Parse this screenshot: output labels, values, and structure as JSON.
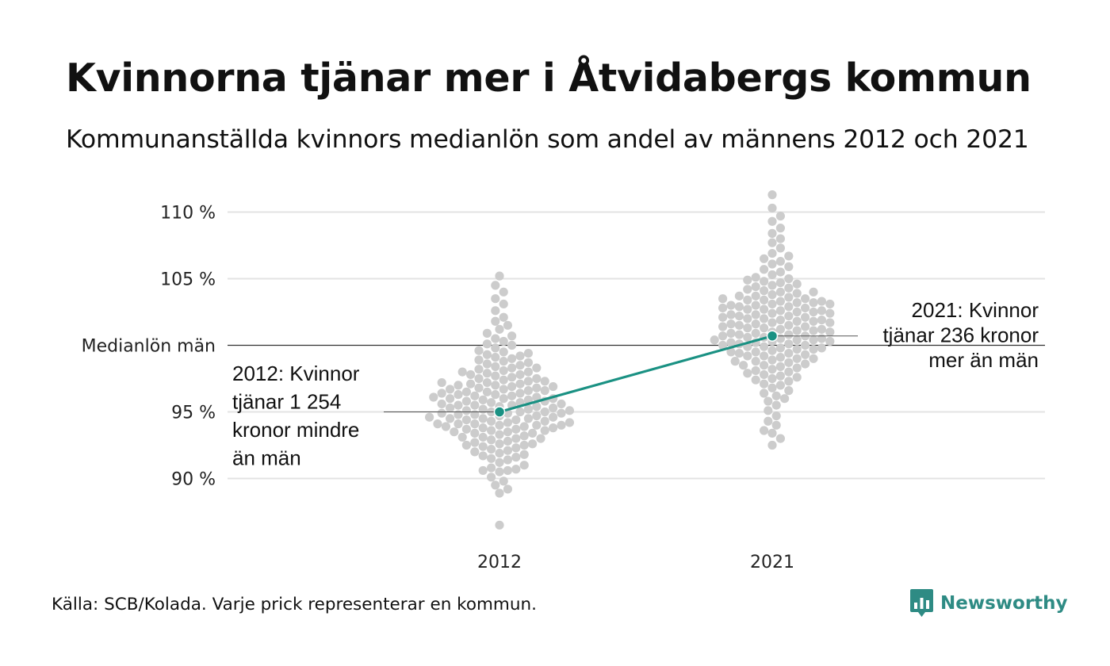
{
  "title": "Kvinnorna tjänar mer i Åtvidabergs kommun",
  "subtitle": "Kommunanställda kvinnors medianlön som andel av männens 2012 och 2021",
  "source": "Källa: SCB/Kolada. Varje prick representerar en kommun.",
  "brand": {
    "name": "Newsworthy",
    "icon": "newsworthy-logo-icon",
    "color": "#2e8b84"
  },
  "chart_data": {
    "type": "scatter",
    "subtype": "beeswarm",
    "title": "Kvinnorna tjänar mer i Åtvidabergs kommun",
    "subtitle": "Kommunanställda kvinnors medianlön som andel av männens 2012 och 2021",
    "categories": [
      "2012",
      "2021"
    ],
    "y_ticks": [
      {
        "value": 90,
        "label": "90 %"
      },
      {
        "value": 95,
        "label": "95 %"
      },
      {
        "value": 100,
        "label": "Medianlön män"
      },
      {
        "value": 105,
        "label": "105 %"
      },
      {
        "value": 110,
        "label": "110 %"
      }
    ],
    "ylim": [
      85.8,
      111.9
    ],
    "grid": true,
    "reference_line": {
      "value": 100,
      "label": "Medianlön män"
    },
    "colors": {
      "dots": "#cccccc",
      "highlight": "#1a9183",
      "grid": "#e3e3e3",
      "reference": "#333333"
    },
    "highlight": {
      "name": "Åtvidabergs kommun",
      "values": [
        {
          "x": "2012",
          "y": 95.0
        },
        {
          "x": "2021",
          "y": 100.7
        }
      ]
    },
    "annotations": [
      {
        "category": "2012",
        "y": 95.0,
        "text": [
          "2012: Kvinnor",
          "tjänar 1 254",
          "kronor mindre",
          "än män"
        ]
      },
      {
        "category": "2021",
        "y": 100.7,
        "text": [
          "2021: Kvinnor",
          "tjänar 236 kronor",
          "mer än män"
        ]
      }
    ],
    "series": [
      {
        "name": "2012",
        "values": [
          86.5,
          88.9,
          89.2,
          89.5,
          89.8,
          90.1,
          90.5,
          90.6,
          90.6,
          90.7,
          90.8,
          91.0,
          91.2,
          91.4,
          91.5,
          91.6,
          91.7,
          91.8,
          91.9,
          92.0,
          92.1,
          92.2,
          92.3,
          92.4,
          92.5,
          92.5,
          92.6,
          92.6,
          92.7,
          92.8,
          92.9,
          93.0,
          93.0,
          93.1,
          93.1,
          93.2,
          93.3,
          93.4,
          93.4,
          93.5,
          93.5,
          93.6,
          93.6,
          93.7,
          93.7,
          93.8,
          93.8,
          93.9,
          93.9,
          94.0,
          94.0,
          94.0,
          94.1,
          94.1,
          94.1,
          94.2,
          94.2,
          94.3,
          94.3,
          94.4,
          94.4,
          94.5,
          94.5,
          94.5,
          94.6,
          94.6,
          94.7,
          94.7,
          94.8,
          94.8,
          94.9,
          94.9,
          94.9,
          95.0,
          95.0,
          95.0,
          95.1,
          95.1,
          95.2,
          95.2,
          95.3,
          95.3,
          95.4,
          95.4,
          95.5,
          95.5,
          95.5,
          95.6,
          95.6,
          95.7,
          95.7,
          95.8,
          95.8,
          95.9,
          95.9,
          96.0,
          96.0,
          96.0,
          96.1,
          96.1,
          96.2,
          96.2,
          96.3,
          96.3,
          96.4,
          96.4,
          96.5,
          96.5,
          96.6,
          96.6,
          96.7,
          96.7,
          96.8,
          96.8,
          96.9,
          96.9,
          97.0,
          97.0,
          97.1,
          97.1,
          97.2,
          97.2,
          97.3,
          97.3,
          97.4,
          97.5,
          97.5,
          97.6,
          97.7,
          97.8,
          97.8,
          97.9,
          98.0,
          98.0,
          98.1,
          98.2,
          98.3,
          98.3,
          98.4,
          98.5,
          98.6,
          98.7,
          98.8,
          98.9,
          99.0,
          99.1,
          99.2,
          99.3,
          99.4,
          99.5,
          99.6,
          99.8,
          100.0,
          100.1,
          100.3,
          100.5,
          100.7,
          100.9,
          101.2,
          101.5,
          101.8,
          102.1,
          102.6,
          103.1,
          103.5,
          104.0,
          104.5,
          105.2
        ]
      },
      {
        "name": "2021",
        "values": [
          92.5,
          93.0,
          93.4,
          93.6,
          94.0,
          94.3,
          94.7,
          95.1,
          95.5,
          95.8,
          96.0,
          96.2,
          96.4,
          96.6,
          96.8,
          97.0,
          97.1,
          97.3,
          97.4,
          97.5,
          97.6,
          97.7,
          97.8,
          97.9,
          98.0,
          98.1,
          98.2,
          98.3,
          98.4,
          98.5,
          98.5,
          98.6,
          98.7,
          98.8,
          98.8,
          98.9,
          99.0,
          99.0,
          99.1,
          99.2,
          99.2,
          99.3,
          99.4,
          99.4,
          99.5,
          99.5,
          99.6,
          99.7,
          99.7,
          99.8,
          99.8,
          99.9,
          99.9,
          100.0,
          100.0,
          100.1,
          100.1,
          100.2,
          100.2,
          100.3,
          100.3,
          100.4,
          100.4,
          100.4,
          100.5,
          100.5,
          100.6,
          100.6,
          100.7,
          100.7,
          100.8,
          100.8,
          100.9,
          100.9,
          101.0,
          101.0,
          101.1,
          101.1,
          101.2,
          101.2,
          101.3,
          101.3,
          101.4,
          101.4,
          101.5,
          101.5,
          101.6,
          101.6,
          101.7,
          101.7,
          101.8,
          101.8,
          101.9,
          101.9,
          102.0,
          102.0,
          102.1,
          102.1,
          102.2,
          102.2,
          102.3,
          102.3,
          102.4,
          102.4,
          102.5,
          102.5,
          102.6,
          102.6,
          102.7,
          102.7,
          102.8,
          102.8,
          102.9,
          102.9,
          103.0,
          103.0,
          103.1,
          103.1,
          103.2,
          103.2,
          103.3,
          103.3,
          103.4,
          103.4,
          103.5,
          103.5,
          103.6,
          103.7,
          103.7,
          103.8,
          103.9,
          104.0,
          104.0,
          104.1,
          104.2,
          104.3,
          104.4,
          104.5,
          104.6,
          104.7,
          104.8,
          104.9,
          105.0,
          105.1,
          105.3,
          105.5,
          105.7,
          105.9,
          106.1,
          106.3,
          106.5,
          106.7,
          106.9,
          107.3,
          107.7,
          108.0,
          108.4,
          108.8,
          109.3,
          109.7,
          110.3,
          111.3
        ]
      }
    ]
  }
}
